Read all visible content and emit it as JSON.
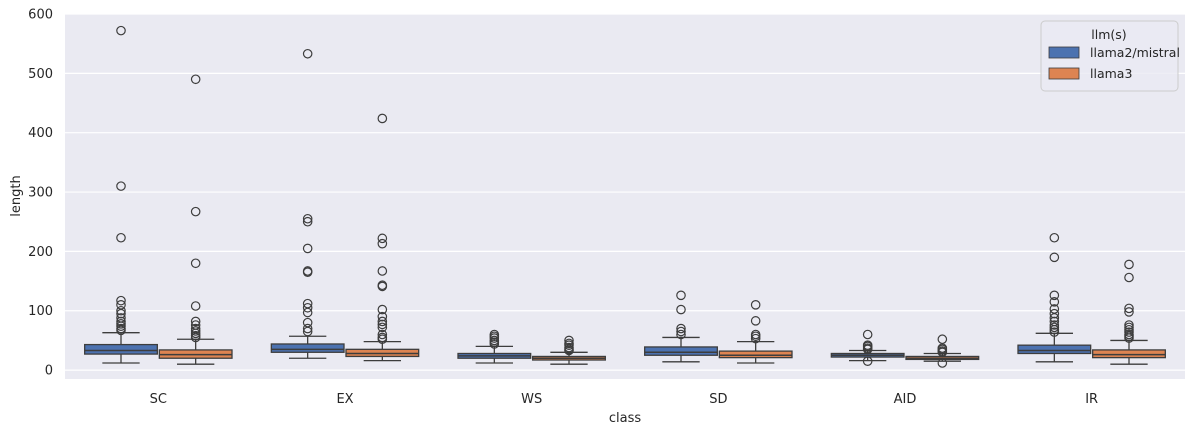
{
  "chart_data": {
    "type": "box",
    "xlabel": "class",
    "ylabel": "length",
    "ylim": [
      -15,
      600
    ],
    "yticks": [
      0,
      100,
      200,
      300,
      400,
      500,
      600
    ],
    "grid": true,
    "legend": {
      "title": "llm(s)",
      "position": "top-right"
    },
    "categories": [
      "SC",
      "EX",
      "WS",
      "SD",
      "AID",
      "IR"
    ],
    "series": [
      {
        "name": "llama2/mistral",
        "color": "#4c72b0",
        "boxes": [
          {
            "whislo": 12,
            "q1": 27,
            "med": 33,
            "q3": 43,
            "whishi": 63,
            "fliers": [
              572,
              310,
              223,
              117,
              110,
              100,
              95,
              88,
              82,
              78,
              74,
              70,
              67
            ]
          },
          {
            "whislo": 20,
            "q1": 30,
            "med": 35,
            "q3": 44,
            "whishi": 57,
            "fliers": [
              533,
              255,
              250,
              205,
              167,
              165,
              112,
              105,
              97,
              80,
              70,
              65
            ]
          },
          {
            "whislo": 12,
            "q1": 20,
            "med": 24,
            "q3": 28,
            "whishi": 40,
            "fliers": [
              60,
              57,
              54,
              50,
              47,
              44
            ]
          },
          {
            "whislo": 14,
            "q1": 25,
            "med": 30,
            "q3": 39,
            "whishi": 55,
            "fliers": [
              126,
              102,
              70,
              65,
              60
            ]
          },
          {
            "whislo": 16,
            "q1": 22,
            "med": 25,
            "q3": 28,
            "whishi": 33,
            "fliers": [
              60,
              42,
              40,
              37,
              35,
              15
            ]
          },
          {
            "whislo": 14,
            "q1": 28,
            "med": 33,
            "q3": 42,
            "whishi": 62,
            "fliers": [
              223,
              190,
              126,
              115,
              103,
              95,
              88,
              82,
              76,
              72,
              68,
              64
            ]
          }
        ]
      },
      {
        "name": "llama3",
        "color": "#dd8452",
        "boxes": [
          {
            "whislo": 10,
            "q1": 20,
            "med": 26,
            "q3": 34,
            "whishi": 52,
            "fliers": [
              490,
              267,
              180,
              108,
              82,
              76,
              70,
              66,
              62,
              58,
              55
            ]
          },
          {
            "whislo": 16,
            "q1": 23,
            "med": 28,
            "q3": 35,
            "whishi": 48,
            "fliers": [
              424,
              222,
              213,
              167,
              143,
              141,
              102,
              90,
              82,
              77,
              72,
              60,
              55,
              52
            ]
          },
          {
            "whislo": 10,
            "q1": 17,
            "med": 20,
            "q3": 23,
            "whishi": 30,
            "fliers": [
              50,
              45,
              42,
              38,
              35,
              33
            ]
          },
          {
            "whislo": 12,
            "q1": 21,
            "med": 25,
            "q3": 32,
            "whishi": 48,
            "fliers": [
              110,
              83,
              60,
              57,
              53
            ]
          },
          {
            "whislo": 15,
            "q1": 18,
            "med": 20,
            "q3": 23,
            "whishi": 28,
            "fliers": [
              52,
              37,
              35,
              32,
              30,
              12
            ]
          },
          {
            "whislo": 10,
            "q1": 21,
            "med": 26,
            "q3": 34,
            "whishi": 50,
            "fliers": [
              178,
              156,
              104,
              98,
              76,
              72,
              68,
              64,
              60,
              57,
              54
            ]
          }
        ]
      }
    ]
  }
}
